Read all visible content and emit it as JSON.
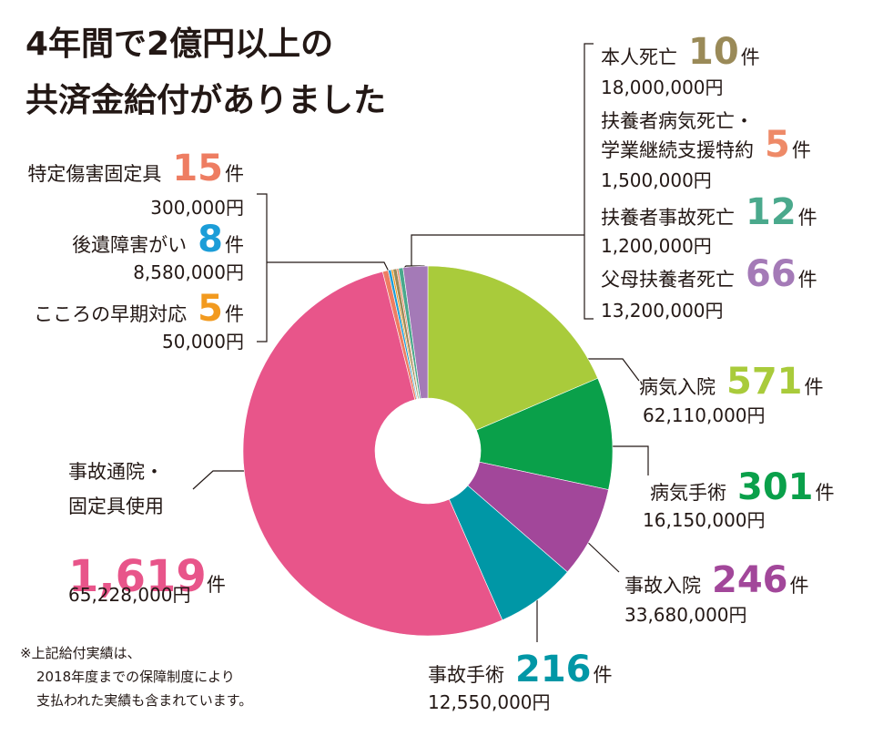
{
  "chart_data": {
    "type": "donut",
    "title": [
      "4年間で2億円以上の",
      "共済金給付がありました"
    ],
    "categories": [
      [
        "病気入院"
      ],
      [
        "病気手術"
      ],
      [
        "事故入院"
      ],
      [
        "事故手術"
      ],
      [
        "事故通院・",
        "固定具使用"
      ],
      [
        "特定傷害固定具"
      ],
      [
        "後遺障害がい"
      ],
      [
        "こころの早期対応"
      ],
      [
        "本人死亡"
      ],
      [
        "扶養者病気死亡・",
        "学業継続支援特約"
      ],
      [
        "扶養者事故死亡"
      ],
      [
        "父母扶養者死亡"
      ]
    ],
    "values": [
      571,
      301,
      246,
      216,
      1619,
      15,
      8,
      5,
      10,
      5,
      12,
      66
    ],
    "value_labels": [
      "571",
      "301",
      "246",
      "216",
      "1,619",
      "15",
      "8",
      "5",
      "10",
      "5",
      "12",
      "66"
    ],
    "unit": "件",
    "amounts": [
      "62,110,000円",
      "16,150,000円",
      "33,680,000円",
      "12,550,000円",
      "65,228,000円",
      "300,000円",
      "8,580,000円",
      "50,000円",
      "18,000,000円",
      "1,500,000円",
      "1,200,000円",
      "13,200,000円"
    ],
    "colors": [
      "#a9cb3b",
      "#0aa04a",
      "#a2479a",
      "#0097a6",
      "#e8558a",
      "#ee7d62",
      "#1b9dd8",
      "#f29a1f",
      "#9a8a58",
      "#ee8a68",
      "#4aa98c",
      "#a47ab7"
    ],
    "footnote": [
      "※上記給付実績は、",
      "2018年度までの保障制度により",
      "支払われた実績も含まれています。"
    ]
  }
}
